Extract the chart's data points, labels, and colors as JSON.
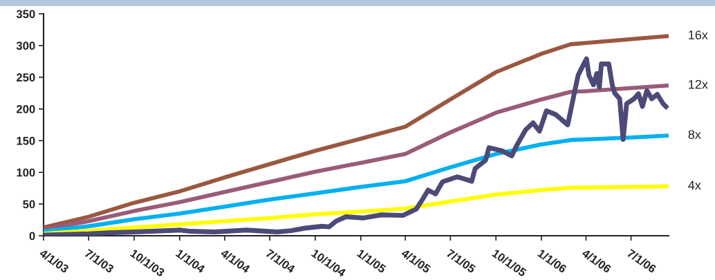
{
  "chart_data": {
    "type": "line",
    "xlim": [
      "2003-04-01",
      "2006-09-15"
    ],
    "xticks": [
      {
        "value": "2003-04-01",
        "label": "4/1/03"
      },
      {
        "value": "2003-07-01",
        "label": "7/1/03"
      },
      {
        "value": "2003-10-01",
        "label": "10/1/03"
      },
      {
        "value": "2004-01-01",
        "label": "1/1/04"
      },
      {
        "value": "2004-04-01",
        "label": "4/1/04"
      },
      {
        "value": "2004-07-01",
        "label": "7/1/04"
      },
      {
        "value": "2004-10-01",
        "label": "10/1/04"
      },
      {
        "value": "2005-01-01",
        "label": "1/1/05"
      },
      {
        "value": "2005-04-01",
        "label": "4/1/05"
      },
      {
        "value": "2005-07-01",
        "label": "7/1/05"
      },
      {
        "value": "2005-10-01",
        "label": "10/1/05"
      },
      {
        "value": "2006-01-01",
        "label": "1/1/06"
      },
      {
        "value": "2006-04-01",
        "label": "4/1/06"
      },
      {
        "value": "2006-07-01",
        "label": "7/1/06"
      }
    ],
    "ylim": [
      0,
      350
    ],
    "yticks": [
      0,
      50,
      100,
      150,
      200,
      250,
      300,
      350
    ],
    "grid": false,
    "legend": false,
    "marker": "none",
    "line_style": "solid",
    "series": [
      {
        "name": "4x",
        "color": "#ffff00",
        "x": [
          "2003-04-01",
          "2003-07-01",
          "2003-10-01",
          "2004-01-01",
          "2004-04-01",
          "2004-07-01",
          "2004-10-01",
          "2005-01-01",
          "2005-04-01",
          "2005-07-01",
          "2005-10-01",
          "2006-01-01",
          "2006-03-01",
          "2006-04-01",
          "2006-07-01",
          "2006-09-15"
        ],
        "values": [
          3,
          8,
          13,
          18,
          23,
          28,
          34,
          38,
          43,
          54,
          65,
          72,
          76,
          76,
          77,
          78
        ]
      },
      {
        "name": "8x",
        "color": "#00b0f0",
        "x": [
          "2003-04-01",
          "2003-07-01",
          "2003-10-01",
          "2004-01-01",
          "2004-04-01",
          "2004-07-01",
          "2004-10-01",
          "2005-01-01",
          "2005-04-01",
          "2005-07-01",
          "2005-10-01",
          "2006-01-01",
          "2006-03-01",
          "2006-04-01",
          "2006-07-01",
          "2006-09-15"
        ],
        "values": [
          7,
          15,
          26,
          35,
          46,
          57,
          67,
          77,
          86,
          108,
          129,
          144,
          151,
          152,
          155,
          158
        ]
      },
      {
        "name": "12x",
        "color": "#995c78",
        "x": [
          "2003-04-01",
          "2003-07-01",
          "2003-10-01",
          "2004-01-01",
          "2004-04-01",
          "2004-07-01",
          "2004-10-01",
          "2005-01-01",
          "2005-04-01",
          "2005-07-01",
          "2005-10-01",
          "2006-01-01",
          "2006-03-01",
          "2006-04-01",
          "2006-07-01",
          "2006-09-15"
        ],
        "values": [
          10,
          23,
          39,
          53,
          69,
          85,
          101,
          115,
          129,
          163,
          194,
          215,
          227,
          228,
          233,
          237
        ]
      },
      {
        "name": "16x",
        "color": "#9a5840",
        "x": [
          "2003-04-01",
          "2003-07-01",
          "2003-10-01",
          "2004-01-01",
          "2004-04-01",
          "2004-07-01",
          "2004-10-01",
          "2005-01-01",
          "2005-04-01",
          "2005-07-01",
          "2005-10-01",
          "2006-01-01",
          "2006-03-01",
          "2006-04-01",
          "2006-07-01",
          "2006-09-15"
        ],
        "values": [
          13,
          30,
          52,
          70,
          92,
          113,
          134,
          153,
          172,
          215,
          258,
          287,
          302,
          304,
          310,
          315
        ]
      },
      {
        "color": "#4b4a78",
        "x": [
          "2003-04-01",
          "2003-07-01",
          "2003-08-16",
          "2003-10-01",
          "2004-01-01",
          "2004-01-23",
          "2004-03-11",
          "2004-05-15",
          "2004-07-16",
          "2004-08-13",
          "2004-09-10",
          "2004-10-15",
          "2004-10-29",
          "2004-11-12",
          "2004-12-02",
          "2005-01-05",
          "2005-02-12",
          "2005-03-27",
          "2005-04-23",
          "2005-05-03",
          "2005-05-17",
          "2005-06-01",
          "2005-06-15",
          "2005-07-15",
          "2005-08-13",
          "2005-08-20",
          "2005-09-10",
          "2005-09-17",
          "2005-10-13",
          "2005-11-02",
          "2005-11-11",
          "2005-11-30",
          "2005-12-15",
          "2005-12-28",
          "2006-01-11",
          "2006-01-30",
          "2006-02-23",
          "2006-03-06",
          "2006-03-16",
          "2006-03-23",
          "2006-04-02",
          "2006-04-07",
          "2006-04-16",
          "2006-04-23",
          "2006-04-28",
          "2006-05-02",
          "2006-05-17",
          "2006-05-24",
          "2006-05-29",
          "2006-06-08",
          "2006-06-15",
          "2006-06-22",
          "2006-07-07",
          "2006-07-16",
          "2006-07-24",
          "2006-08-02",
          "2006-08-12",
          "2006-08-23",
          "2006-09-04",
          "2006-09-13"
        ],
        "values": [
          1,
          3,
          5,
          6,
          9,
          7,
          6,
          9,
          6,
          8,
          12,
          15,
          14,
          23,
          30,
          28,
          33,
          32,
          42,
          54,
          72,
          66,
          85,
          93,
          86,
          106,
          119,
          139,
          134,
          126,
          141,
          167,
          178,
          165,
          197,
          191,
          175,
          216,
          253,
          264,
          279,
          253,
          238,
          256,
          234,
          271,
          271,
          238,
          225,
          216,
          152,
          208,
          216,
          224,
          204,
          229,
          216,
          223,
          208,
          201
        ]
      }
    ]
  }
}
